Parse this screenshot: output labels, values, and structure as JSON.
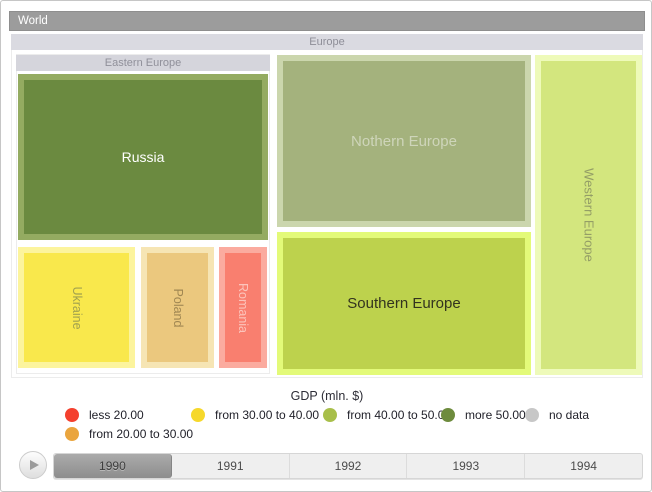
{
  "breadcrumb": {
    "root_label": "World"
  },
  "chart_data": {
    "type": "treemap",
    "title": "GDP (mln. $)",
    "drilldown_path": [
      "World",
      "Europe"
    ],
    "groups": {
      "europe": {
        "label": "Europe"
      },
      "eastern": {
        "label": "Eastern Europe"
      }
    },
    "nodes": {
      "russia": {
        "label": "Russia",
        "parent": "Eastern Europe",
        "fill": "#6b8a40",
        "border": "#94ab61",
        "text": "#ffffff"
      },
      "ukraine": {
        "label": "Ukraine",
        "parent": "Eastern Europe",
        "fill": "#f9e84c",
        "border": "#fcf49d",
        "text": "#a2a24e"
      },
      "poland": {
        "label": "Poland",
        "parent": "Eastern Europe",
        "fill": "#ebc87e",
        "border": "#f6e5b4",
        "text": "#a08752"
      },
      "romania": {
        "label": "Romania",
        "parent": "Eastern Europe",
        "fill": "#f97f6f",
        "border": "#fbab9f",
        "text": "#fcc4bb"
      },
      "northern": {
        "label": "Nothern Europe",
        "parent": "Europe",
        "fill": "#a4b27d",
        "border": "#cbd6ad",
        "text": "#ced5ba"
      },
      "southern": {
        "label": "Southern Europe",
        "parent": "Europe",
        "fill": "#bdd24d",
        "border": "#e3fa79",
        "text": "#33331f"
      },
      "western": {
        "label": "Western Europe",
        "parent": "Europe",
        "fill": "#d3e67e",
        "border": "#eefab9",
        "text": "#949e66"
      }
    },
    "legend": {
      "title": "GDP (mln. $)",
      "items": [
        {
          "label": "less 20.00",
          "color": "#f4402e"
        },
        {
          "label": "from 20.00 to 30.00",
          "color": "#eaa53e"
        },
        {
          "label": "from 30.00 to 40.00",
          "color": "#f6d82b"
        },
        {
          "label": "from 40.00 to 50.00",
          "color": "#a8bf4a"
        },
        {
          "label": "more 50.00",
          "color": "#6d8b3d"
        },
        {
          "label": "no data",
          "color": "#c7c7c7"
        }
      ]
    },
    "timeline": {
      "years": [
        "1990",
        "1991",
        "1992",
        "1993",
        "1994"
      ],
      "selected_year": "1990"
    }
  }
}
